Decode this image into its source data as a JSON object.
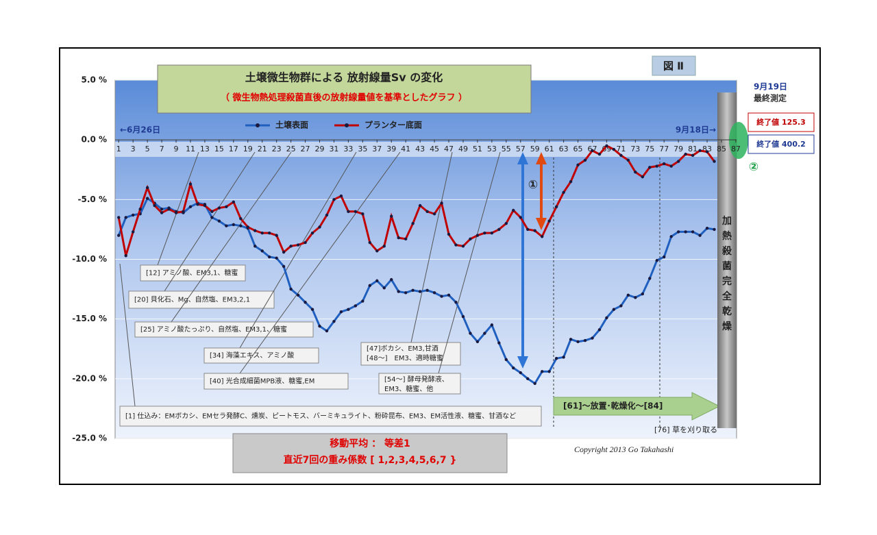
{
  "chart_data": {
    "type": "line",
    "title": "土壌微生物群による 放射線量Sv の変化",
    "subtitle": "（ 微生物熱処理殺菌直後の放射線量値を基準としたグラフ ）",
    "figure_label": "図 Ⅱ",
    "start_label": "←6月26日",
    "end_label": "9月18日→",
    "final_date": "9月19日",
    "final_note": "最終測定",
    "final_values": [
      {
        "text": "終了値 125.3",
        "color": "#c00000"
      },
      {
        "text": "終了値 400.2",
        "color": "#1f3a93"
      }
    ],
    "marker_1": "①",
    "marker_2": "②",
    "heat_label": "加熱殺菌完全乾燥",
    "period_label": "[61]～放置･乾燥化～[84]",
    "grass_label": "[76] 草を刈り取る",
    "method_lines": [
      "移動平均 ： 等差1",
      "直近7回の重み係数 [ 1,2,3,4,5,6,7 }"
    ],
    "copyright": "Copyright 2013 Go Takahashi",
    "annotations": [
      {
        "lines": [
          "[12] アミノ酸、EM3,1、糖蜜"
        ]
      },
      {
        "lines": [
          "[20] 貝化石、Mg、自然塩、EM3,2,1"
        ]
      },
      {
        "lines": [
          "[25] アミノ酸たっぷり、自然塩、EM3,1、糖蜜"
        ]
      },
      {
        "lines": [
          "[34] 海藻エキス、アミノ酸"
        ]
      },
      {
        "lines": [
          "[40] 光合成細菌MPB液、糖蜜,EM"
        ]
      },
      {
        "lines": [
          "[47]ボカシ、EM3,甘酒",
          "[48～]　EM3、適時糖蜜"
        ]
      },
      {
        "lines": [
          "[54～] 酵母発酵液、",
          "EM3、糖蜜、他"
        ]
      },
      {
        "lines": [
          "[1] 仕込み：EMボカシ、EMセラ発酵C、燻炭、ピートモス、バーミキュライト、粉砕昆布、EM3、EM活性液、糖蜜、甘酒など"
        ]
      }
    ],
    "x": [
      1,
      2,
      3,
      4,
      5,
      6,
      7,
      8,
      9,
      10,
      11,
      12,
      13,
      14,
      15,
      16,
      17,
      18,
      19,
      20,
      21,
      22,
      23,
      24,
      25,
      26,
      27,
      28,
      29,
      30,
      31,
      32,
      33,
      34,
      35,
      36,
      37,
      38,
      39,
      40,
      41,
      42,
      43,
      44,
      45,
      46,
      47,
      48,
      49,
      50,
      51,
      52,
      53,
      54,
      55,
      56,
      57,
      58,
      59,
      60,
      61,
      62,
      63,
      64,
      65,
      66,
      67,
      68,
      69,
      70,
      71,
      72,
      73,
      74,
      75,
      76,
      77,
      78,
      79,
      80,
      81,
      82,
      83,
      84
    ],
    "series": [
      {
        "name": "土壌表面",
        "color": "#1f5fbf",
        "values": [
          -8.0,
          -6.5,
          -6.3,
          -6.2,
          -4.9,
          -5.3,
          -5.8,
          -5.7,
          -6.0,
          -6.1,
          -5.6,
          -5.3,
          -5.4,
          -6.5,
          -6.8,
          -7.2,
          -7.1,
          -7.2,
          -7.4,
          -8.9,
          -9.3,
          -9.8,
          -9.9,
          -10.6,
          -12.5,
          -13.0,
          -13.6,
          -14.2,
          -15.6,
          -16.0,
          -15.2,
          -14.4,
          -14.2,
          -13.9,
          -13.5,
          -12.2,
          -11.8,
          -12.4,
          -11.7,
          -12.7,
          -12.8,
          -12.6,
          -12.7,
          -12.6,
          -12.8,
          -13.1,
          -13.0,
          -13.6,
          -14.8,
          -16.2,
          -16.9,
          -16.2,
          -15.5,
          -17.0,
          -18.4,
          -19.1,
          -19.5,
          -20.0,
          -20.4,
          -19.4,
          -19.4,
          -18.3,
          -18.2,
          -16.7,
          -16.9,
          -16.8,
          -16.6,
          -15.9,
          -14.9,
          -14.2,
          -13.9,
          -13.0,
          -13.2,
          -12.9,
          -11.6,
          -10.1,
          -9.8,
          -8.1,
          -7.7,
          -7.7,
          -7.7,
          -8.0,
          -7.4,
          -7.5
        ]
      },
      {
        "name": "プランター底面",
        "color": "#c00000",
        "values": [
          -6.5,
          -9.7,
          -7.7,
          -5.8,
          -4.0,
          -5.5,
          -6.1,
          -5.8,
          -6.1,
          -6.0,
          -3.7,
          -5.4,
          -5.5,
          -6.0,
          -5.7,
          -5.6,
          -5.2,
          -6.6,
          -7.3,
          -7.6,
          -7.8,
          -7.8,
          -8.0,
          -9.4,
          -8.9,
          -8.8,
          -8.6,
          -7.8,
          -7.3,
          -6.3,
          -5.0,
          -4.7,
          -6.0,
          -6.0,
          -6.2,
          -8.6,
          -9.3,
          -8.9,
          -6.4,
          -8.2,
          -8.3,
          -7.0,
          -5.5,
          -6.0,
          -6.2,
          -5.3,
          -7.9,
          -8.8,
          -8.9,
          -8.3,
          -8.0,
          -7.8,
          -7.8,
          -7.5,
          -7.0,
          -5.9,
          -6.5,
          -7.5,
          -7.6,
          -8.1,
          -6.8,
          -5.6,
          -4.4,
          -3.5,
          -2.1,
          -1.7,
          -0.9,
          -1.2,
          -0.5,
          -0.8,
          -1.3,
          -1.7,
          -2.7,
          -3.1,
          -2.3,
          -2.2,
          -2.0,
          -2.2,
          -1.8,
          -1.2,
          -1.3,
          -0.9,
          -1.0,
          -1.8
        ]
      }
    ],
    "xlim": [
      0.5,
      87.1
    ],
    "xticks": [
      1,
      3,
      5,
      7,
      9,
      11,
      13,
      15,
      17,
      19,
      21,
      23,
      25,
      27,
      29,
      31,
      33,
      35,
      37,
      39,
      41,
      43,
      45,
      47,
      49,
      51,
      53,
      55,
      57,
      59,
      61,
      63,
      65,
      67,
      69,
      71,
      73,
      75,
      77,
      79,
      81,
      83,
      85,
      87
    ],
    "ylim": [
      -25,
      5
    ],
    "yticks": [
      {
        "value": 5,
        "label": "5.0 %"
      },
      {
        "value": 0,
        "label": "0.0 %"
      },
      {
        "value": -5,
        "label": "-5.0 %"
      },
      {
        "value": -10,
        "label": "-10.0 %"
      },
      {
        "value": -15,
        "label": "-15.0 %"
      },
      {
        "value": -20,
        "label": "-20.0 %"
      },
      {
        "value": -25,
        "label": "-25.0 %"
      }
    ],
    "grid": true
  }
}
